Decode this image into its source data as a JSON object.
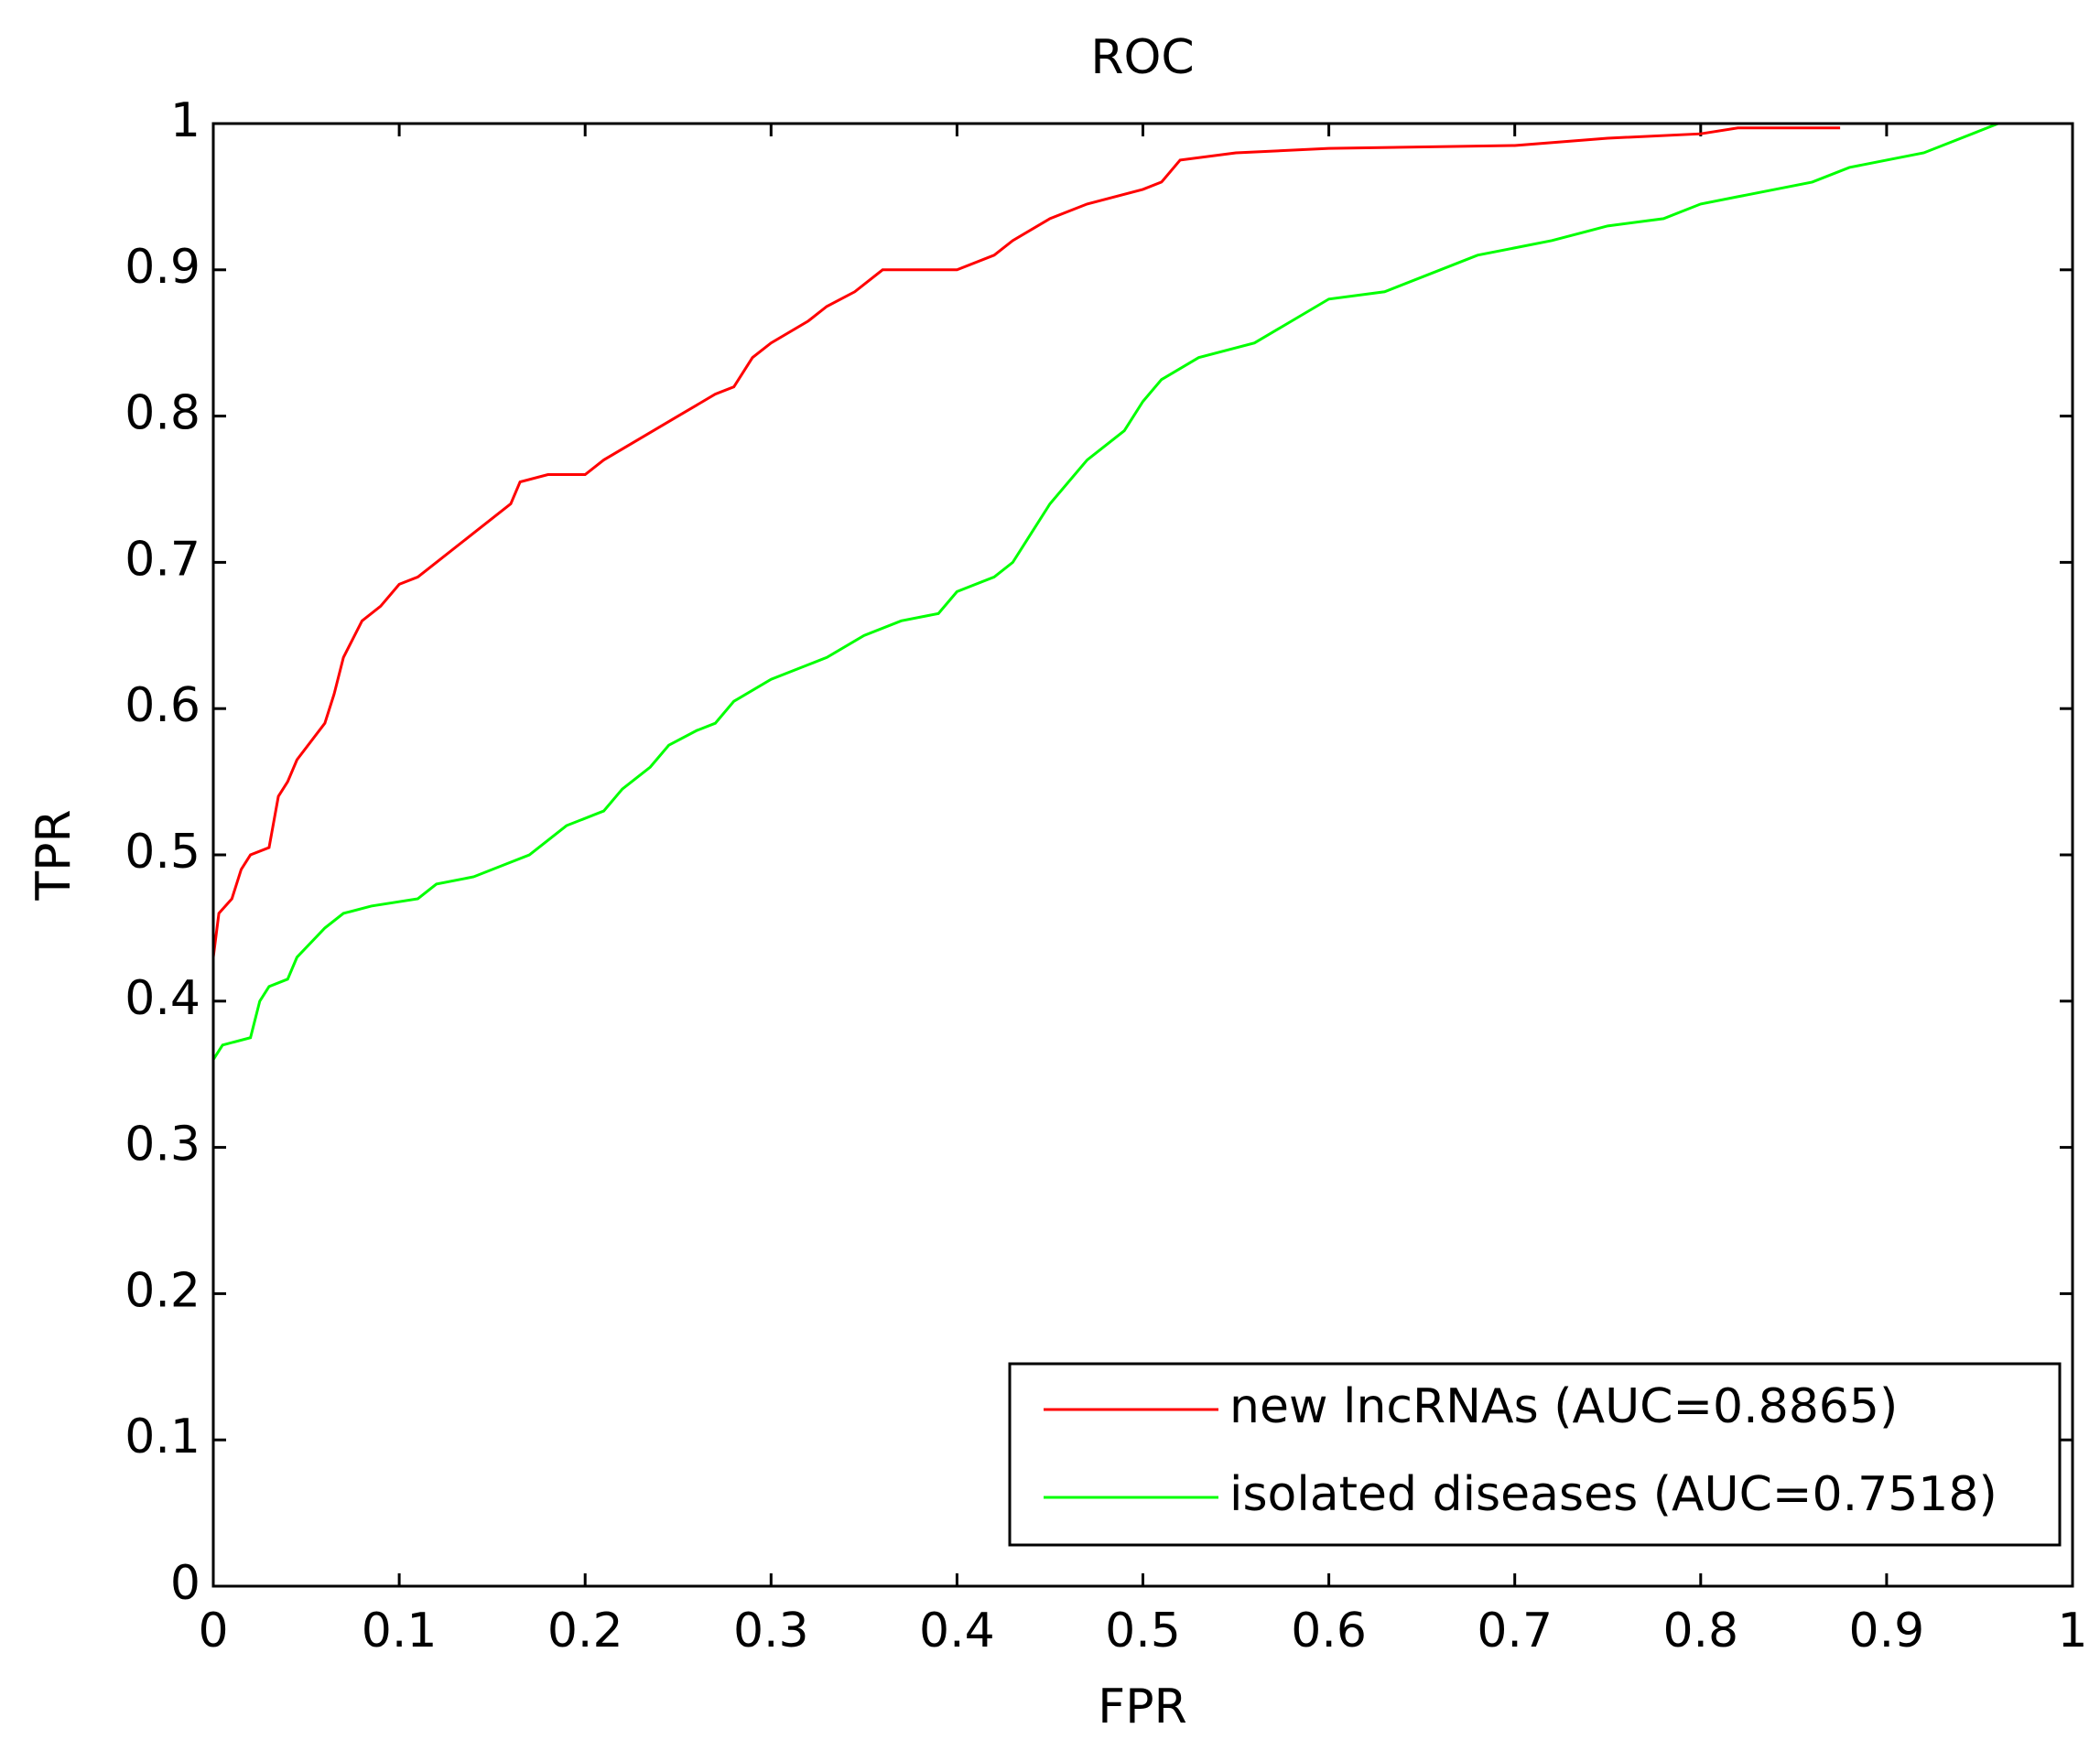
{
  "chart_data": {
    "type": "line",
    "title": "ROC",
    "x_label": "FPR",
    "y_label": "TPR",
    "xlim": [
      0,
      1
    ],
    "ylim": [
      0,
      1
    ],
    "xticks": [
      0,
      0.1,
      0.2,
      0.3,
      0.4,
      0.5,
      0.6,
      0.7,
      0.8,
      0.9,
      1
    ],
    "yticks": [
      0,
      0.1,
      0.2,
      0.3,
      0.4,
      0.5,
      0.6,
      0.7,
      0.8,
      0.9,
      1
    ],
    "legend": "lower right",
    "series": [
      {
        "name": "new lncRNAs (AUC=0.8865)",
        "color": "#ff0000",
        "x": [
          0,
          0.003,
          0.01,
          0.015,
          0.02,
          0.03,
          0.035,
          0.04,
          0.045,
          0.06,
          0.065,
          0.07,
          0.08,
          0.09,
          0.1,
          0.11,
          0.12,
          0.14,
          0.15,
          0.16,
          0.165,
          0.18,
          0.2,
          0.21,
          0.23,
          0.25,
          0.27,
          0.28,
          0.29,
          0.3,
          0.32,
          0.33,
          0.345,
          0.36,
          0.4,
          0.42,
          0.43,
          0.45,
          0.47,
          0.5,
          0.51,
          0.52,
          0.55,
          0.6,
          0.7,
          0.75,
          0.8,
          0.82,
          0.875
        ],
        "values": [
          0.43,
          0.46,
          0.47,
          0.49,
          0.5,
          0.505,
          0.54,
          0.55,
          0.565,
          0.59,
          0.61,
          0.635,
          0.66,
          0.67,
          0.685,
          0.69,
          0.7,
          0.72,
          0.73,
          0.74,
          0.755,
          0.76,
          0.76,
          0.77,
          0.785,
          0.8,
          0.815,
          0.82,
          0.84,
          0.85,
          0.865,
          0.875,
          0.885,
          0.9,
          0.9,
          0.91,
          0.92,
          0.935,
          0.945,
          0.955,
          0.96,
          0.975,
          0.98,
          0.983,
          0.985,
          0.99,
          0.993,
          0.997,
          0.997
        ]
      },
      {
        "name": "isolated diseases (AUC=0.7518)",
        "color": "#00ff00",
        "x": [
          0,
          0.005,
          0.02,
          0.025,
          0.03,
          0.04,
          0.045,
          0.06,
          0.07,
          0.085,
          0.11,
          0.12,
          0.14,
          0.16,
          0.17,
          0.18,
          0.19,
          0.21,
          0.22,
          0.235,
          0.245,
          0.26,
          0.27,
          0.28,
          0.3,
          0.32,
          0.33,
          0.35,
          0.37,
          0.39,
          0.4,
          0.42,
          0.43,
          0.44,
          0.45,
          0.47,
          0.49,
          0.5,
          0.51,
          0.53,
          0.56,
          0.58,
          0.6,
          0.63,
          0.66,
          0.68,
          0.72,
          0.75,
          0.78,
          0.8,
          0.82,
          0.86,
          0.88,
          0.92,
          0.95,
          0.96
        ],
        "values": [
          0.36,
          0.37,
          0.375,
          0.4,
          0.41,
          0.415,
          0.43,
          0.45,
          0.46,
          0.465,
          0.47,
          0.48,
          0.485,
          0.495,
          0.5,
          0.51,
          0.52,
          0.53,
          0.545,
          0.56,
          0.575,
          0.585,
          0.59,
          0.605,
          0.62,
          0.63,
          0.635,
          0.65,
          0.66,
          0.665,
          0.68,
          0.69,
          0.7,
          0.72,
          0.74,
          0.77,
          0.79,
          0.81,
          0.825,
          0.84,
          0.85,
          0.865,
          0.88,
          0.885,
          0.9,
          0.91,
          0.92,
          0.93,
          0.935,
          0.945,
          0.95,
          0.96,
          0.97,
          0.98,
          0.995,
          1.0
        ]
      }
    ]
  }
}
